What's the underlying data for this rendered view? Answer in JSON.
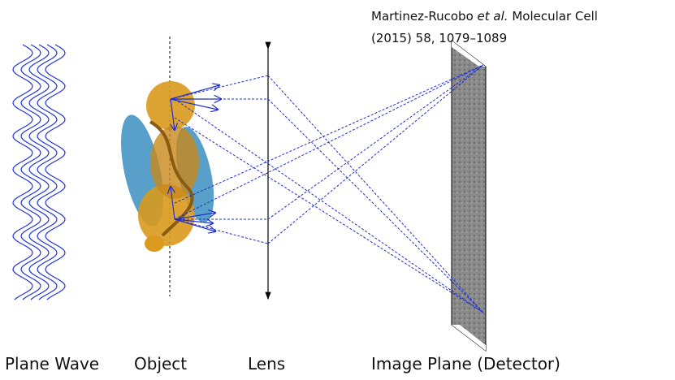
{
  "citation": {
    "authors": "Martinez-Rucobo",
    "etal": "et al.",
    "journal": "Molecular Cell",
    "reference": "(2015) 58, 1079–1089"
  },
  "labels": [
    "Plane Wave",
    "Object",
    "Lens",
    "Image Plane (Detector)"
  ]
}
